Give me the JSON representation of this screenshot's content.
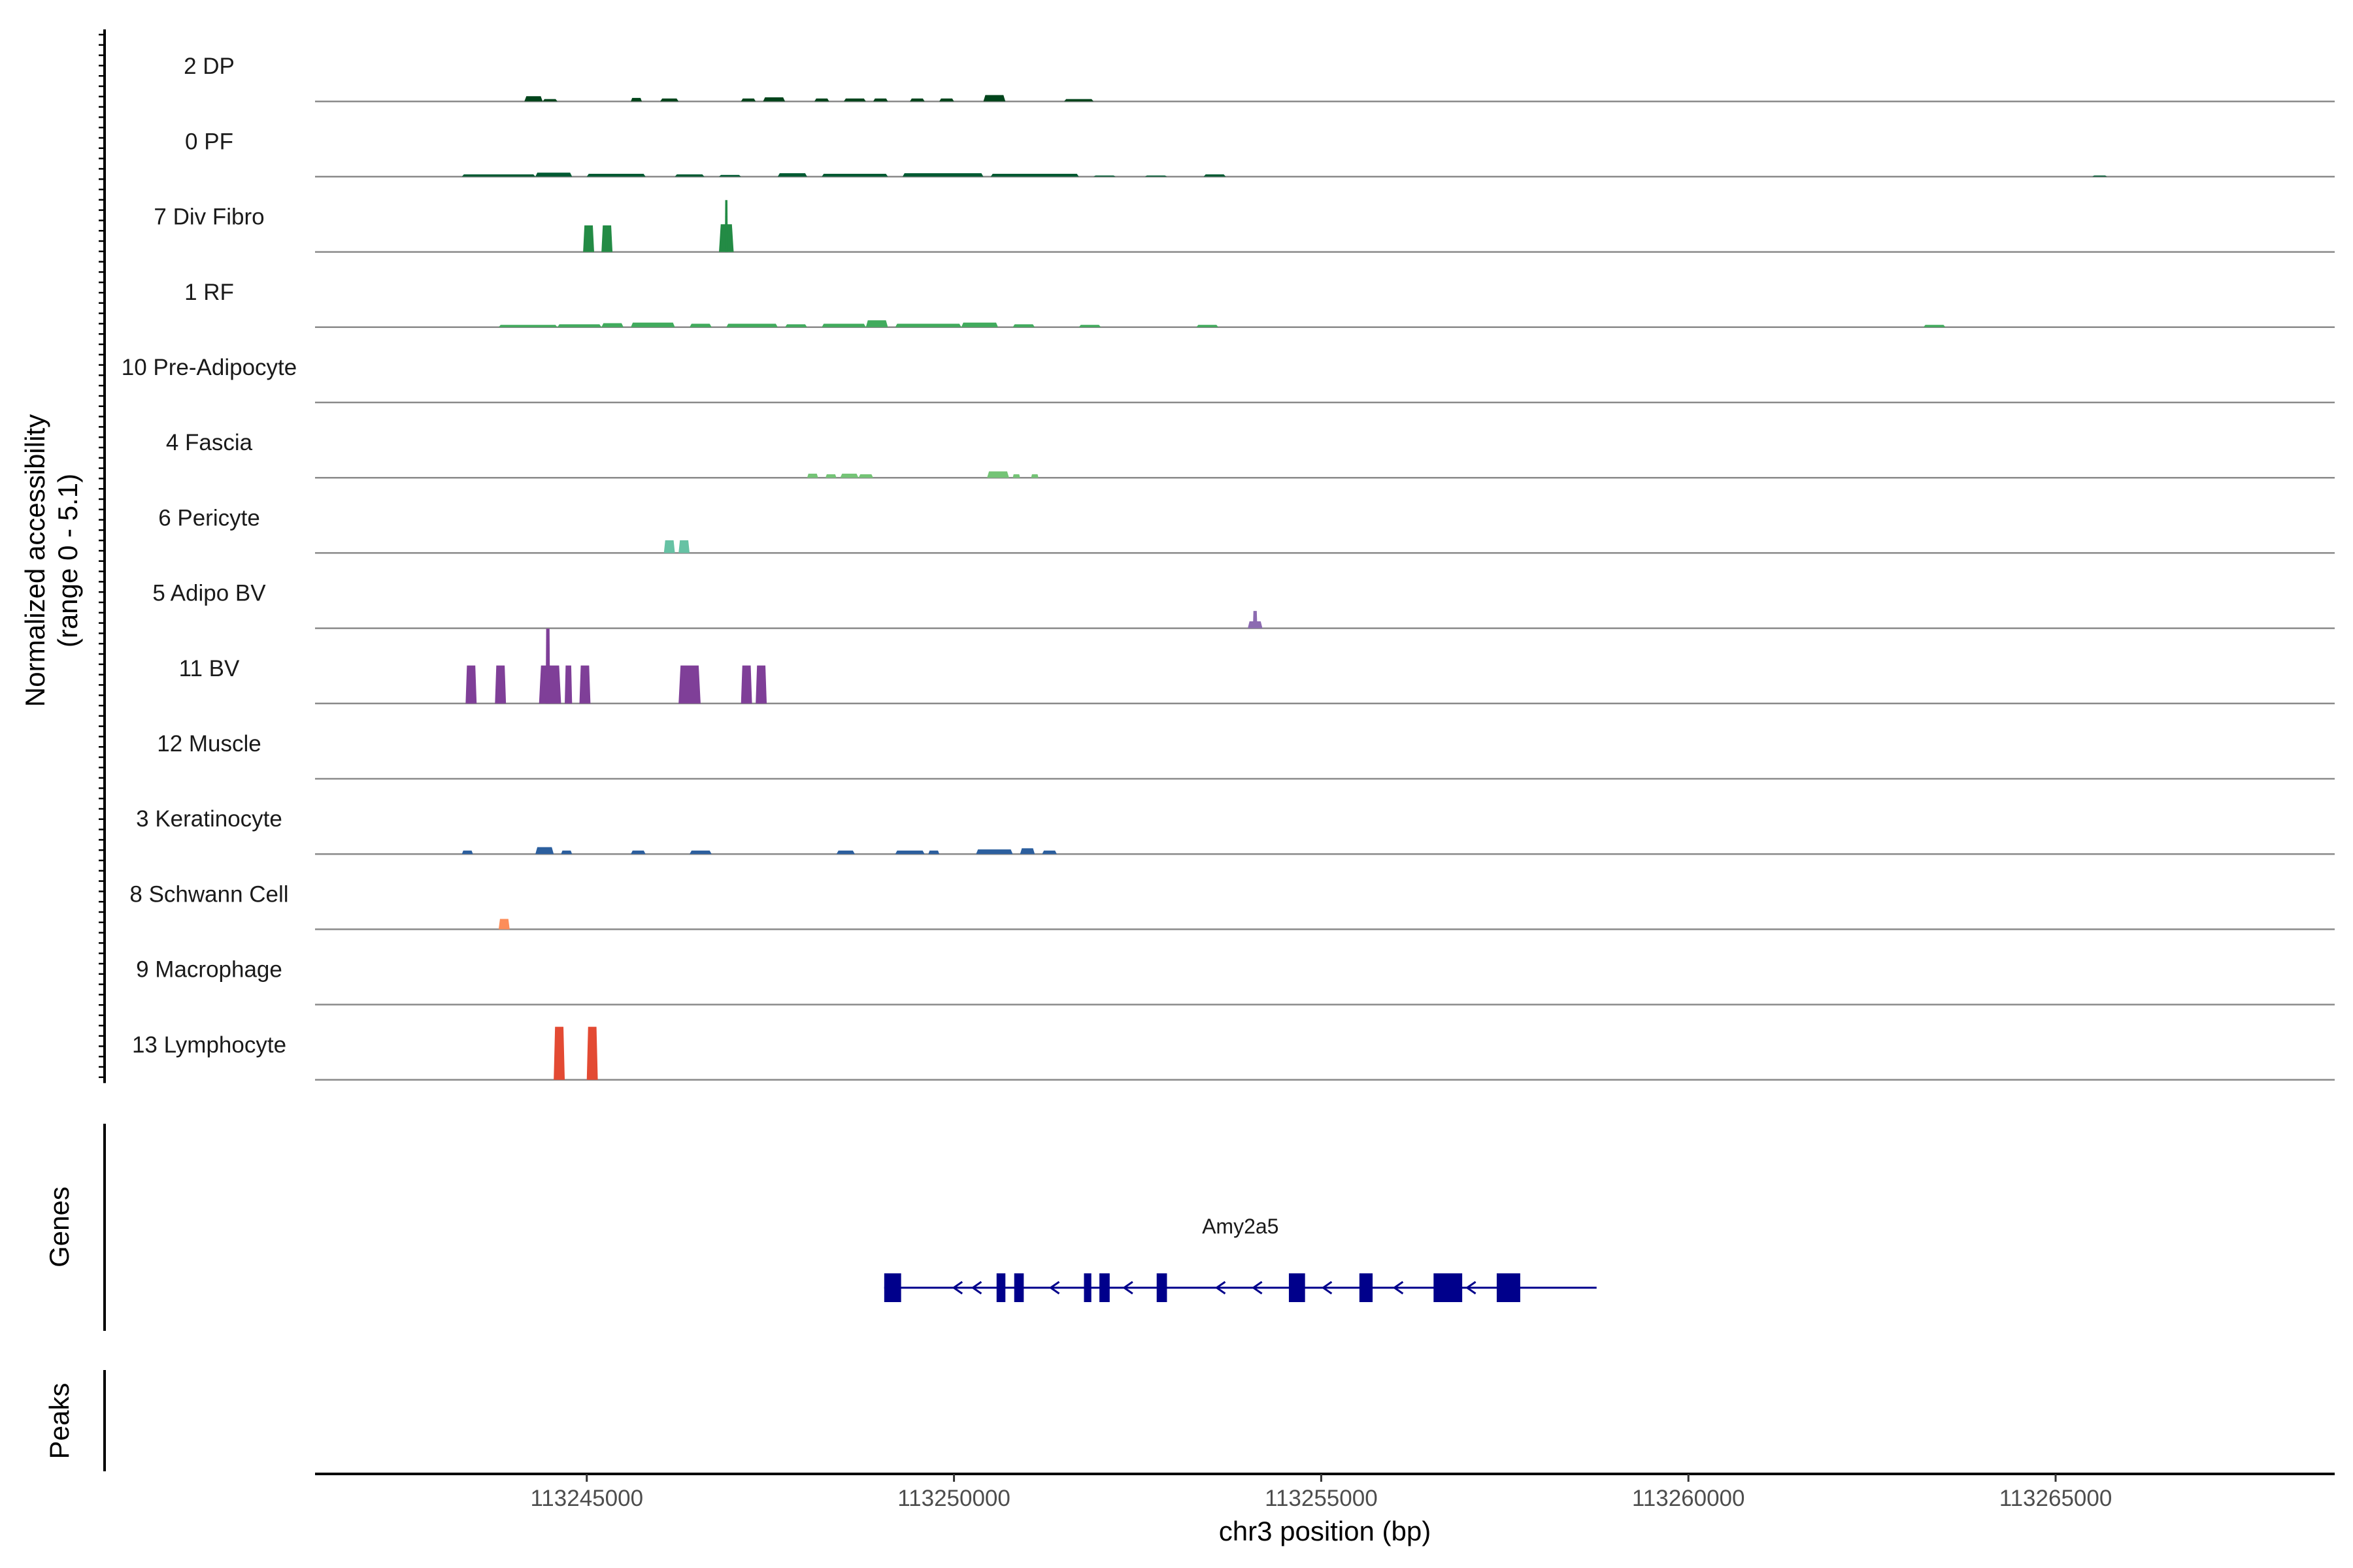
{
  "chart_data": {
    "type": "area",
    "title": "",
    "ylabel_line1": "Normalized accessibility",
    "ylabel_line2": "(range 0 - 5.1)",
    "y_range": [
      0,
      5.1
    ],
    "xlabel": "chr3 position (bp)",
    "xlim": [
      113241300,
      113268800
    ],
    "x_ticks": [
      {
        "value": 113245000,
        "label": "113245000"
      },
      {
        "value": 113250000,
        "label": "113250000"
      },
      {
        "value": 113255000,
        "label": "113255000"
      },
      {
        "value": 113260000,
        "label": "113260000"
      },
      {
        "value": 113265000,
        "label": "113265000"
      }
    ],
    "tracks": [
      {
        "name": "2 DP",
        "color": "#00441b",
        "peaks": [
          {
            "s": 113244150,
            "e": 113244400,
            "h": 0.45
          },
          {
            "s": 113244400,
            "e": 113244600,
            "h": 0.2
          },
          {
            "s": 113245600,
            "e": 113245750,
            "h": 0.3
          },
          {
            "s": 113246000,
            "e": 113246250,
            "h": 0.25
          },
          {
            "s": 113247100,
            "e": 113247300,
            "h": 0.25
          },
          {
            "s": 113247400,
            "e": 113247700,
            "h": 0.35
          },
          {
            "s": 113248100,
            "e": 113248300,
            "h": 0.25
          },
          {
            "s": 113248500,
            "e": 113248800,
            "h": 0.25
          },
          {
            "s": 113248900,
            "e": 113249100,
            "h": 0.25
          },
          {
            "s": 113249400,
            "e": 113249600,
            "h": 0.25
          },
          {
            "s": 113249800,
            "e": 113250000,
            "h": 0.25
          },
          {
            "s": 113250400,
            "e": 113250700,
            "h": 0.55
          },
          {
            "s": 113251500,
            "e": 113251900,
            "h": 0.2
          }
        ]
      },
      {
        "name": "0 PF",
        "color": "#005a32",
        "peaks": [
          {
            "s": 113243300,
            "e": 113244300,
            "h": 0.2
          },
          {
            "s": 113244300,
            "e": 113244800,
            "h": 0.35
          },
          {
            "s": 113245000,
            "e": 113245800,
            "h": 0.25
          },
          {
            "s": 113246200,
            "e": 113246600,
            "h": 0.2
          },
          {
            "s": 113246800,
            "e": 113247100,
            "h": 0.15
          },
          {
            "s": 113247600,
            "e": 113248000,
            "h": 0.3
          },
          {
            "s": 113248200,
            "e": 113249100,
            "h": 0.25
          },
          {
            "s": 113249300,
            "e": 113250400,
            "h": 0.3
          },
          {
            "s": 113250500,
            "e": 113251700,
            "h": 0.25
          },
          {
            "s": 113251900,
            "e": 113252200,
            "h": 0.1
          },
          {
            "s": 113252600,
            "e": 113252900,
            "h": 0.1
          },
          {
            "s": 113253400,
            "e": 113253700,
            "h": 0.2
          },
          {
            "s": 113265500,
            "e": 113265700,
            "h": 0.1
          }
        ]
      },
      {
        "name": "7 Div Fibro",
        "color": "#238b45",
        "peaks": [
          {
            "s": 113244950,
            "e": 113245100,
            "h": 2.3
          },
          {
            "s": 113245200,
            "e": 113245350,
            "h": 2.3
          },
          {
            "s": 113246800,
            "e": 113247000,
            "h": 2.4
          },
          {
            "s": 113246880,
            "e": 113246920,
            "h": 4.5
          }
        ]
      },
      {
        "name": "1 RF",
        "color": "#41ab5d",
        "peaks": [
          {
            "s": 113243800,
            "e": 113244600,
            "h": 0.2
          },
          {
            "s": 113244600,
            "e": 113245200,
            "h": 0.25
          },
          {
            "s": 113245200,
            "e": 113245500,
            "h": 0.35
          },
          {
            "s": 113245600,
            "e": 113246200,
            "h": 0.4
          },
          {
            "s": 113246400,
            "e": 113246700,
            "h": 0.3
          },
          {
            "s": 113246900,
            "e": 113247600,
            "h": 0.3
          },
          {
            "s": 113247700,
            "e": 113248000,
            "h": 0.25
          },
          {
            "s": 113248200,
            "e": 113248800,
            "h": 0.3
          },
          {
            "s": 113248800,
            "e": 113249100,
            "h": 0.6
          },
          {
            "s": 113249200,
            "e": 113250100,
            "h": 0.3
          },
          {
            "s": 113250100,
            "e": 113250600,
            "h": 0.4
          },
          {
            "s": 113250800,
            "e": 113251100,
            "h": 0.25
          },
          {
            "s": 113251700,
            "e": 113252000,
            "h": 0.2
          },
          {
            "s": 113253300,
            "e": 113253600,
            "h": 0.2
          },
          {
            "s": 113263200,
            "e": 113263500,
            "h": 0.2
          }
        ]
      },
      {
        "name": "10 Pre-Adipocyte",
        "color": "#74c476",
        "peaks": []
      },
      {
        "name": "4 Fascia",
        "color": "#74c476",
        "peaks": [
          {
            "s": 113248000,
            "e": 113248150,
            "h": 0.35
          },
          {
            "s": 113248250,
            "e": 113248400,
            "h": 0.3
          },
          {
            "s": 113248450,
            "e": 113248700,
            "h": 0.35
          },
          {
            "s": 113248700,
            "e": 113248900,
            "h": 0.3
          },
          {
            "s": 113250450,
            "e": 113250750,
            "h": 0.55
          },
          {
            "s": 113250800,
            "e": 113250900,
            "h": 0.3
          },
          {
            "s": 113251050,
            "e": 113251150,
            "h": 0.3
          }
        ]
      },
      {
        "name": "6 Pericyte",
        "color": "#66c2a4",
        "peaks": [
          {
            "s": 113246050,
            "e": 113246200,
            "h": 1.1
          },
          {
            "s": 113246250,
            "e": 113246400,
            "h": 1.1
          }
        ]
      },
      {
        "name": "5 Adipo BV",
        "color": "#8c6bb1",
        "peaks": [
          {
            "s": 113254000,
            "e": 113254200,
            "h": 0.6
          },
          {
            "s": 113254070,
            "e": 113254130,
            "h": 1.5
          }
        ]
      },
      {
        "name": "11 BV",
        "color": "#7f3f98",
        "peaks": [
          {
            "s": 113243350,
            "e": 113243500,
            "h": 3.3
          },
          {
            "s": 113243750,
            "e": 113243900,
            "h": 3.3
          },
          {
            "s": 113244350,
            "e": 113244650,
            "h": 3.3
          },
          {
            "s": 113244440,
            "e": 113244500,
            "h": 6.5
          },
          {
            "s": 113244700,
            "e": 113244800,
            "h": 3.3
          },
          {
            "s": 113244900,
            "e": 113245050,
            "h": 3.3
          },
          {
            "s": 113246250,
            "e": 113246550,
            "h": 3.3
          },
          {
            "s": 113247100,
            "e": 113247250,
            "h": 3.3
          },
          {
            "s": 113247300,
            "e": 113247450,
            "h": 3.3
          }
        ]
      },
      {
        "name": "12 Muscle",
        "color": "#3f007d",
        "peaks": []
      },
      {
        "name": "3 Keratinocyte",
        "color": "#2c5f9e",
        "peaks": [
          {
            "s": 113243300,
            "e": 113243450,
            "h": 0.3
          },
          {
            "s": 113244300,
            "e": 113244550,
            "h": 0.6
          },
          {
            "s": 113244650,
            "e": 113244800,
            "h": 0.3
          },
          {
            "s": 113245600,
            "e": 113245800,
            "h": 0.3
          },
          {
            "s": 113246400,
            "e": 113246700,
            "h": 0.3
          },
          {
            "s": 113248400,
            "e": 113248650,
            "h": 0.3
          },
          {
            "s": 113249200,
            "e": 113249600,
            "h": 0.3
          },
          {
            "s": 113249650,
            "e": 113249800,
            "h": 0.3
          },
          {
            "s": 113250300,
            "e": 113250800,
            "h": 0.4
          },
          {
            "s": 113250900,
            "e": 113251100,
            "h": 0.5
          },
          {
            "s": 113251200,
            "e": 113251400,
            "h": 0.3
          }
        ]
      },
      {
        "name": "8 Schwann Cell",
        "color": "#fc8d59",
        "peaks": [
          {
            "s": 113243800,
            "e": 113243950,
            "h": 0.9
          }
        ]
      },
      {
        "name": "9 Macrophage",
        "color": "#f46d43",
        "peaks": []
      },
      {
        "name": "13 Lymphocyte",
        "color": "#e34a33",
        "peaks": [
          {
            "s": 113244550,
            "e": 113244700,
            "h": 4.6
          },
          {
            "s": 113245000,
            "e": 113245150,
            "h": 4.6
          }
        ]
      }
    ],
    "genes_label": "Genes",
    "peaks_label": "Peaks",
    "gene": {
      "name": "Amy2a5",
      "color": "#00008b",
      "strand": "-",
      "start": 113249050,
      "end": 113258750,
      "exons": [
        {
          "s": 113249050,
          "e": 113249280
        },
        {
          "s": 113250580,
          "e": 113250700
        },
        {
          "s": 113250820,
          "e": 113250950
        },
        {
          "s": 113251770,
          "e": 113251870
        },
        {
          "s": 113251980,
          "e": 113252120
        },
        {
          "s": 113252760,
          "e": 113252900
        },
        {
          "s": 113254560,
          "e": 113254780
        },
        {
          "s": 113255520,
          "e": 113255700
        },
        {
          "s": 113256530,
          "e": 113256920
        },
        {
          "s": 113257390,
          "e": 113257710
        }
      ],
      "arrows": [
        113250050,
        113250310,
        113251370,
        113252370,
        113253630,
        113254130,
        113255080,
        113256050,
        113256780,
        113257040
      ]
    }
  }
}
